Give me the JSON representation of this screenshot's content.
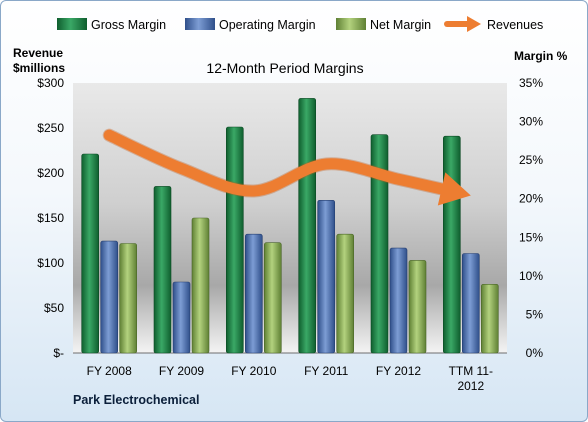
{
  "chart_data": {
    "type": "bar",
    "title": "12-Month Period Margins",
    "company": "Park Electrochemical",
    "left_axis_label": [
      "Revenue",
      "$millions"
    ],
    "right_axis_label": "Margin %",
    "categories": [
      "FY 2008",
      "FY 2009",
      "FY 2010",
      "FY 2011",
      "FY 2012",
      "TTM 11-2012"
    ],
    "category_labels": [
      [
        "FY 2008"
      ],
      [
        "FY 2009"
      ],
      [
        "FY 2010"
      ],
      [
        "FY 2011"
      ],
      [
        "FY 2012"
      ],
      [
        "TTM 11-",
        "2012"
      ]
    ],
    "left_axis": {
      "min": 0,
      "max": 300,
      "step": 50,
      "tick_labels": [
        "$-",
        "$50",
        "$100",
        "$150",
        "$200",
        "$250",
        "$300"
      ]
    },
    "right_axis": {
      "min": 0,
      "max": 35,
      "step": 5,
      "tick_labels": [
        "0%",
        "5%",
        "10%",
        "15%",
        "20%",
        "25%",
        "30%",
        "35%"
      ]
    },
    "series": [
      {
        "name": "Gross Margin",
        "kind": "bar",
        "axis": "right",
        "color": "#1e8a4a",
        "values": [
          25.8,
          21.6,
          29.3,
          33.0,
          28.3,
          28.1
        ]
      },
      {
        "name": "Operating Margin",
        "kind": "bar",
        "axis": "right",
        "color": "#4f73b3",
        "values": [
          14.5,
          9.2,
          15.4,
          19.8,
          13.6,
          12.9
        ]
      },
      {
        "name": "Net Margin",
        "kind": "bar",
        "axis": "right",
        "color": "#8db35a",
        "values": [
          14.2,
          17.5,
          14.3,
          15.4,
          12.0,
          8.9
        ]
      },
      {
        "name": "Revenues",
        "kind": "line",
        "axis": "left",
        "color": "#ed7d31",
        "values": [
          242,
          205,
          180,
          210,
          193,
          175
        ]
      }
    ],
    "legend_position": "top",
    "grid": false
  }
}
